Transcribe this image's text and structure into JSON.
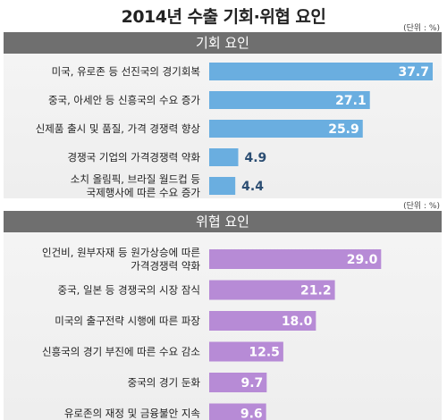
{
  "title": "2014년 수출 기회·위협 요인",
  "chart_data": [
    {
      "type": "bar",
      "orientation": "horizontal",
      "title": "기회 요인",
      "unit_note": "(단위 : %)",
      "color": "#6aaee0",
      "categories": [
        "미국, 유로존 등 선진국의 경기회복",
        "중국, 아세안 등 신흥국의 수요 증가",
        "신제품 출시 및 품질, 가격 경쟁력 향상",
        "경쟁국 기업의 가격경쟁력 약화",
        "소치 올림픽, 브라질 월드컵 등\n국제행사에 따른 수요 증가"
      ],
      "values": [
        37.7,
        27.1,
        25.9,
        4.9,
        4.4
      ],
      "value_labels": [
        "37.7",
        "27.1",
        "25.9",
        "4.9",
        "4.4"
      ]
    },
    {
      "type": "bar",
      "orientation": "horizontal",
      "title": "위협 요인",
      "unit_note": "(단위 : %)",
      "color": "#b78bd6",
      "categories": [
        "인건비, 원부자재 등 원가상승에 따른\n가격경쟁력 약화",
        "중국, 일본 등 경쟁국의 시장 잠식",
        "미국의 출구전략 시행에 따른 파장",
        "신흥국의 경기 부진에 따른 수요 감소",
        "중국의 경기 둔화",
        "유로존의 재정 및 금융불안 지속"
      ],
      "values": [
        29.0,
        21.2,
        18.0,
        12.5,
        9.7,
        9.6
      ],
      "value_labels": [
        "29.0",
        "21.2",
        "18.0",
        "12.5",
        "9.7",
        "9.6"
      ]
    }
  ]
}
